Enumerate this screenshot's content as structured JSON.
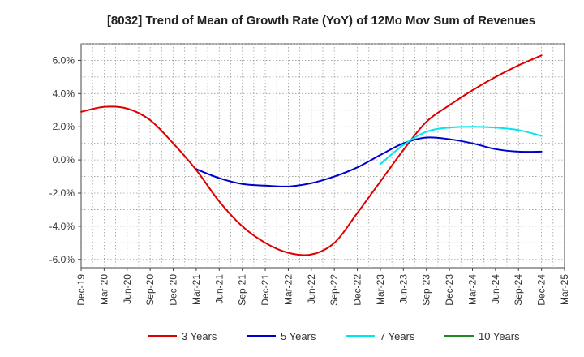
{
  "chart_data": {
    "type": "line",
    "title": "[8032]  Trend of Mean of Growth Rate (YoY) of 12Mo Mov Sum of Revenues",
    "xlabel": "",
    "ylabel": "",
    "ylim": [
      -6.5,
      7.0
    ],
    "yticks": [
      -6.0,
      -4.0,
      -2.0,
      0.0,
      2.0,
      4.0,
      6.0
    ],
    "ytick_labels": [
      "-6.0%",
      "-4.0%",
      "-2.0%",
      "0.0%",
      "2.0%",
      "4.0%",
      "6.0%"
    ],
    "categories": [
      "Dec-19",
      "Mar-20",
      "Jun-20",
      "Sep-20",
      "Dec-20",
      "Mar-21",
      "Jun-21",
      "Sep-21",
      "Dec-21",
      "Mar-22",
      "Jun-22",
      "Sep-22",
      "Dec-22",
      "Mar-23",
      "Jun-23",
      "Sep-23",
      "Dec-23",
      "Mar-24",
      "Jun-24",
      "Sep-24",
      "Dec-24",
      "Mar-25"
    ],
    "grid": true,
    "legend_position": "bottom",
    "series": [
      {
        "name": "3 Years",
        "color": "#dd0000",
        "values": [
          2.9,
          3.2,
          3.1,
          2.4,
          1.0,
          -0.6,
          -2.5,
          -4.0,
          -5.0,
          -5.6,
          -5.7,
          -5.0,
          -3.2,
          -1.3,
          0.6,
          2.3,
          3.3,
          4.2,
          5.0,
          5.7,
          6.3,
          null
        ]
      },
      {
        "name": "5 Years",
        "color": "#0000cc",
        "values": [
          null,
          null,
          null,
          null,
          null,
          -0.55,
          -1.1,
          -1.45,
          -1.55,
          -1.6,
          -1.4,
          -1.0,
          -0.45,
          0.3,
          1.0,
          1.35,
          1.25,
          1.0,
          0.65,
          0.5,
          0.5,
          null
        ]
      },
      {
        "name": "7 Years",
        "color": "#00e5ee",
        "values": [
          null,
          null,
          null,
          null,
          null,
          null,
          null,
          null,
          null,
          null,
          null,
          null,
          null,
          -0.25,
          0.9,
          1.7,
          1.95,
          2.0,
          1.95,
          1.8,
          1.45,
          null
        ]
      },
      {
        "name": "10 Years",
        "color": "#228822",
        "values": [
          null,
          null,
          null,
          null,
          null,
          null,
          null,
          null,
          null,
          null,
          null,
          null,
          null,
          null,
          null,
          null,
          null,
          null,
          null,
          null,
          null,
          null
        ]
      }
    ]
  }
}
